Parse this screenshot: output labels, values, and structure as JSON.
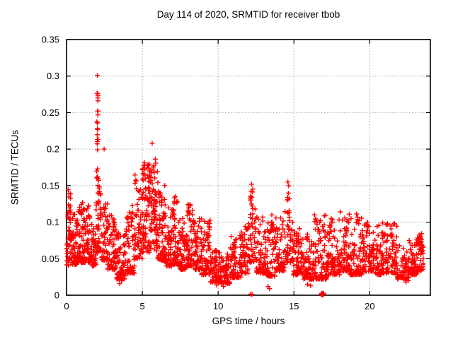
{
  "chart_data": {
    "type": "scatter",
    "title": "Day 114 of 2020, SRMTID for receiver tbob",
    "xlabel": "GPS time / hours",
    "ylabel": "SRMTID / TECUs",
    "xlim": [
      0,
      24
    ],
    "ylim": [
      0,
      0.35
    ],
    "xtick_values": [
      0,
      5,
      10,
      15,
      20
    ],
    "xtick_labels": [
      "0",
      "5",
      "10",
      "15",
      "20"
    ],
    "ytick_values": [
      0,
      0.05,
      0.1,
      0.15,
      0.2,
      0.25,
      0.3,
      0.35
    ],
    "ytick_labels": [
      "0",
      "0.05",
      "0.1",
      "0.15",
      "0.2",
      "0.25",
      "0.3",
      "0.35"
    ],
    "grid": {
      "show": true,
      "color": "#a9a9a9",
      "style": "dotted"
    },
    "legend": "none",
    "marker": {
      "shape": "plus",
      "color": "#ff0000",
      "size": 7,
      "stroke_width": 1.4
    },
    "background": "#ffffff",
    "border_color": "#000000",
    "seed": 20200114,
    "band_bins": [
      [
        0.0,
        0.3,
        35,
        0.04,
        0.145,
        1.4
      ],
      [
        0.3,
        0.7,
        55,
        0.042,
        0.112,
        2.0
      ],
      [
        0.7,
        1.1,
        55,
        0.045,
        0.132,
        2.2
      ],
      [
        1.1,
        1.6,
        60,
        0.045,
        0.128,
        2.1
      ],
      [
        1.6,
        1.95,
        45,
        0.04,
        0.1,
        1.9
      ],
      [
        1.95,
        2.3,
        40,
        0.058,
        0.15,
        1.5
      ],
      [
        2.3,
        2.7,
        50,
        0.048,
        0.128,
        2.1
      ],
      [
        2.7,
        3.3,
        70,
        0.035,
        0.112,
        2.2
      ],
      [
        3.3,
        3.9,
        70,
        0.022,
        0.085,
        2.0
      ],
      [
        3.9,
        4.5,
        65,
        0.03,
        0.115,
        2.4
      ],
      [
        4.5,
        5.0,
        60,
        0.05,
        0.165,
        1.6
      ],
      [
        5.0,
        5.5,
        65,
        0.058,
        0.185,
        1.5
      ],
      [
        5.5,
        6.0,
        65,
        0.06,
        0.195,
        1.4
      ],
      [
        6.0,
        6.5,
        60,
        0.048,
        0.152,
        1.8
      ],
      [
        6.5,
        7.0,
        60,
        0.04,
        0.126,
        2.0
      ],
      [
        7.0,
        7.35,
        42,
        0.042,
        0.138,
        1.9
      ],
      [
        7.35,
        7.9,
        60,
        0.035,
        0.108,
        2.0
      ],
      [
        7.9,
        8.35,
        55,
        0.04,
        0.132,
        2.1
      ],
      [
        8.35,
        8.9,
        60,
        0.035,
        0.105,
        2.1
      ],
      [
        8.9,
        9.5,
        65,
        0.028,
        0.105,
        2.1
      ],
      [
        9.5,
        10.2,
        70,
        0.018,
        0.062,
        1.9
      ],
      [
        10.2,
        10.8,
        60,
        0.016,
        0.058,
        1.9
      ],
      [
        10.8,
        11.5,
        70,
        0.024,
        0.082,
        2.0
      ],
      [
        11.5,
        12.0,
        55,
        0.03,
        0.095,
        2.0
      ],
      [
        12.0,
        12.5,
        42,
        0.045,
        0.125,
        1.8
      ],
      [
        12.5,
        13.2,
        70,
        0.03,
        0.108,
        2.2
      ],
      [
        13.2,
        13.8,
        60,
        0.026,
        0.1,
        2.2
      ],
      [
        13.8,
        14.4,
        60,
        0.033,
        0.108,
        2.2
      ],
      [
        14.4,
        14.95,
        45,
        0.045,
        0.118,
        1.9
      ],
      [
        14.95,
        15.6,
        65,
        0.028,
        0.092,
        2.1
      ],
      [
        15.6,
        16.3,
        70,
        0.022,
        0.085,
        2.1
      ],
      [
        16.3,
        17.2,
        85,
        0.022,
        0.115,
        2.4
      ],
      [
        17.2,
        18.0,
        75,
        0.028,
        0.105,
        2.1
      ],
      [
        18.0,
        18.7,
        70,
        0.033,
        0.118,
        2.2
      ],
      [
        18.7,
        19.5,
        75,
        0.028,
        0.112,
        2.2
      ],
      [
        19.5,
        20.3,
        75,
        0.032,
        0.098,
        2.1
      ],
      [
        20.3,
        21.0,
        65,
        0.028,
        0.103,
        2.1
      ],
      [
        21.0,
        21.8,
        75,
        0.03,
        0.1,
        2.1
      ],
      [
        21.8,
        22.6,
        70,
        0.022,
        0.068,
        1.9
      ],
      [
        22.6,
        23.1,
        55,
        0.028,
        0.08,
        2.0
      ],
      [
        23.1,
        23.55,
        45,
        0.033,
        0.088,
        1.7
      ]
    ],
    "spike_columns": [
      [
        2.06,
        0.12,
        15,
        0.19,
        0.285,
        1.0
      ],
      [
        2.08,
        0.18,
        8,
        0.145,
        0.192,
        1.0
      ],
      [
        0.18,
        0.2,
        10,
        0.095,
        0.143,
        1.0
      ],
      [
        1.0,
        0.15,
        4,
        0.105,
        0.133,
        1.0
      ],
      [
        4.3,
        0.15,
        4,
        0.095,
        0.125,
        1.0
      ],
      [
        5.3,
        0.5,
        13,
        0.13,
        0.184,
        1.0
      ],
      [
        5.65,
        0.4,
        15,
        0.12,
        0.19,
        1.0
      ],
      [
        6.15,
        0.3,
        8,
        0.12,
        0.155,
        1.0
      ],
      [
        7.08,
        0.12,
        6,
        0.1,
        0.137,
        1.0
      ],
      [
        8.1,
        0.16,
        6,
        0.095,
        0.135,
        1.0
      ],
      [
        9.4,
        0.15,
        5,
        0.08,
        0.105,
        1.0
      ],
      [
        12.2,
        0.18,
        12,
        0.09,
        0.148,
        1.0
      ],
      [
        13.5,
        0.12,
        5,
        0.08,
        0.118,
        1.0
      ],
      [
        14.62,
        0.18,
        12,
        0.09,
        0.15,
        1.0
      ],
      [
        17.0,
        0.15,
        5,
        0.075,
        0.11,
        1.0
      ],
      [
        18.4,
        0.2,
        6,
        0.085,
        0.118,
        1.0
      ],
      [
        21.4,
        0.15,
        5,
        0.078,
        0.1,
        1.0
      ],
      [
        23.35,
        0.18,
        7,
        0.06,
        0.086,
        1.0
      ]
    ],
    "extra_points": [
      [
        2.03,
        0.301
      ],
      [
        2.05,
        0.276
      ],
      [
        2.07,
        0.273
      ],
      [
        2.06,
        0.27
      ],
      [
        5.65,
        0.208
      ],
      [
        2.48,
        0.2
      ],
      [
        12.21,
        0.152
      ],
      [
        14.6,
        0.155
      ],
      [
        14.65,
        0.15
      ],
      [
        19.86,
        0.1
      ],
      [
        3.5,
        0.016
      ],
      [
        3.62,
        0.02
      ],
      [
        9.9,
        0.014
      ],
      [
        10.35,
        0.012
      ],
      [
        10.5,
        0.017
      ],
      [
        13.3,
        0.012
      ],
      [
        13.38,
        0.009
      ],
      [
        15.9,
        0.015
      ],
      [
        16.1,
        0.013
      ],
      [
        22.4,
        0.018
      ],
      [
        22.55,
        0.02
      ]
    ],
    "zero_points": [
      [
        12.15,
        0.0015
      ],
      [
        12.24,
        0.001
      ],
      [
        16.8,
        0.001
      ],
      [
        16.83,
        0.0025
      ],
      [
        16.85,
        0.0015
      ],
      [
        16.86,
        0.0005
      ],
      [
        16.88,
        0.002
      ],
      [
        16.9,
        0.001
      ],
      [
        16.91,
        0.0022
      ],
      [
        16.92,
        0.003
      ],
      [
        16.94,
        0.0008
      ],
      [
        16.96,
        0.002
      ]
    ]
  }
}
